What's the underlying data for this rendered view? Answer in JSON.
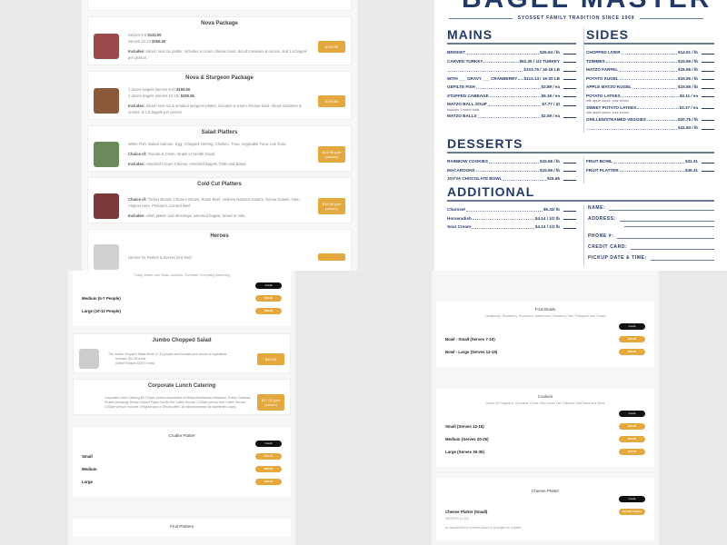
{
  "colors": {
    "accent": "#e3a93e",
    "navy": "#243a66",
    "credit": "#111111"
  },
  "catering": {
    "cards": [
      {
        "title": "Nova Package",
        "lines": [
          [
            "Serves 6-8 ",
            "$143.00"
          ],
          [
            "Serves 12-15 ",
            "$256.30"
          ]
        ],
        "includes_label": "Includes:",
        "includes": " sliced nova lox platter, includes a cream cheese bowl, sliced tomatoes & onions, and 1.5 bagels per person.",
        "button": "$143.00",
        "thumb": "#9b4a4a"
      },
      {
        "title": "Nova & Sturgeon Package",
        "lines": [
          [
            "1 dozen bagels (serves 6-8) ",
            "$159.50"
          ],
          [
            "2 dozen bagels (serves 12-15) ",
            "$290.95"
          ]
        ],
        "includes_label": "Includes:",
        "includes": " sliced nova lox & smoked sturgeon platter, includes a cream cheese bowl, sliced tomatoes & onions, & 1.5 bagels per person.",
        "button": "$159.50",
        "thumb": "#8a5a3a"
      },
      {
        "title": "Salad Platters",
        "lines": [
          [
            "White Fish, Baked Salmon, Egg, Chopped Herring, Chicken, Tuna, Vegetable Tuna, Lite Tuna",
            ""
          ]
        ],
        "choice_label": "Choice of:",
        "choice": " Tomato & Onion, Israeli or Health Salad",
        "includes_label": "Includes:",
        "includes": " Assorted Cream Cheese, Assorted Bagels, Flats and Bialys",
        "button": "$19.96 (per person)",
        "thumb": "#6a8a5a"
      },
      {
        "title": "Cold Cut Platters",
        "choice_label": "Choice of:",
        "choice": " Turkey Breast, Chicken Breast, Roast Beef, Hebrew National Salami, Genoa Salami, Ham, Virginia Ham, Pastrami, Corned Beef.",
        "includes_label": "Includes:",
        "includes": " relish platter and dressings, assorted bagels, bread or rolls.",
        "button": "$19.96 (per person)",
        "thumb": "#7a3a3a"
      },
      {
        "title": "Heroes",
        "lines": [
          [
            "Heroes for Parties & Events (3-6 feet)",
            ""
          ]
        ],
        "thumb": "#d0d0d0"
      }
    ]
  },
  "menu": {
    "brand": "BAGEL MASTER",
    "tagline": "SYOSSET FAMILY TRADITION SINCE 1969",
    "mains_title": "MAINS",
    "sides_title": "SIDES",
    "desserts_title": "DESSERTS",
    "additional_title": "ADDITIONAL",
    "mains": [
      {
        "n": "BRISKET",
        "p": "$25.94 / lb"
      },
      {
        "n": "CARVED TURKEY",
        "p": "$62.25 / 1/2 TURKEY"
      },
      {
        "n": "",
        "p": "$103.75 / 16-18 LB"
      },
      {
        "n": "WITH ___ GRAVY ___ CRANBERRY",
        "p": "$114.13 / 16-20 LB"
      },
      {
        "n": "GEFILTE FISH",
        "p": "$3.89 / ea"
      },
      {
        "n": "STUFFED CABBAGE",
        "p": "$5.19 / ea"
      },
      {
        "n": "MATZO BALL SOUP",
        "p": "$7.77 / qt",
        "sub": "includes 3 matzo balls"
      },
      {
        "n": "MATZO BALLS",
        "p": "$2.59 / ea"
      }
    ],
    "sides": [
      {
        "n": "CHOPPED LIVER",
        "p": "$14.51 / lb"
      },
      {
        "n": "TZIMMES",
        "p": "$15.55 / lb"
      },
      {
        "n": "MATZO FARFEL",
        "p": "$15.55 / lb"
      },
      {
        "n": "POTATO KUGEL",
        "p": "$15.55 / lb"
      },
      {
        "n": "APPLE MATZO KUGEL",
        "p": "$15.55 / lb"
      },
      {
        "n": "POTATO LATKES",
        "p": "$3.11 / ea",
        "sub": "with apple sauce, sour cream"
      },
      {
        "n": "SWEET POTATO LATKES",
        "p": "$3.37 / ea",
        "sub": "with apple sauce, sour cream"
      },
      {
        "n": "GRILLED/STEAMED VEGGIES",
        "p": "$20.75 / lb"
      },
      {
        "n": "",
        "p": "$41.50 / lb"
      }
    ],
    "desserts": [
      {
        "n": "RAINBOW COOKIES",
        "p": "$15.55 / lb"
      },
      {
        "n": "MACAROONS",
        "p": "$15.55 / lb"
      },
      {
        "n": "JOYVA CHOCOLATE BOWL",
        "p": "$15.55"
      }
    ],
    "desserts_right": [
      {
        "n": "FRUIT BOWL",
        "p": "$31.31"
      },
      {
        "n": "FRUIT PLATTER",
        "p": "$36.31"
      }
    ],
    "additional": [
      {
        "n": "Charoset",
        "p": "$9.32/ lb"
      },
      {
        "n": "Horseradish",
        "p": "$4.14 / 1/2 lb"
      },
      {
        "n": "Sour Cream",
        "p": "$4.14 / 1/2 lb"
      }
    ],
    "form": [
      "NAME:",
      "ADDRESS:",
      "PHONE #:",
      "CREDIT CARD:",
      "PICKUP DATE & TIME:"
    ]
  },
  "left_bottom": {
    "top_subtitle": "Turkey, Alpine Lace Swiss, Avocado, Cucumber, Everything Seasoning",
    "credit": "Credit",
    "top_options": [
      {
        "label": "Medium (5-7 People)",
        "price": "$49.99"
      },
      {
        "label": "Large (10-12 People)",
        "price": "$69.99"
      }
    ],
    "jumbo": {
      "title": "Jumbo Chopped Salad",
      "desc": "The Jumbo Chopped Salad feeds 12-15 people and includes your choice of ingredients",
      "bullets": [
        "Avocado $12.95 extra",
        "Grilled Chicken $18.57 extra"
      ],
      "button": "$45.00"
    },
    "corporate": {
      "title": "Corporate Lunch Catering",
      "desc": "Corporate Lunch Catering $17.00/per person Assortment of Wraps/Sandwiches Macaroni, Potato Coleslaw, Pickles Dressings Drinks Dessert Paper Goods Hot Coffee Service 1.00/per person Iced Coffee Service 3.00/per person Includes: (Regular and or Decaf coffee, all milks/creamers/ all sweeteners cups)",
      "button": "$17.00 (per person)"
    },
    "crudite": {
      "title": "Crudite Platter",
      "options": [
        {
          "label": "Small",
          "price": "$72.12"
        },
        {
          "label": "Medium",
          "price": "$82.95"
        },
        {
          "label": "Large",
          "price": "$93.30"
        }
      ]
    },
    "fruit_platters_title": "Fruit Platters"
  },
  "right_bottom": {
    "credit": "Credit",
    "fruit_bowls": {
      "title": "Fruit Bowls",
      "subtitle": "Cantaloupe, Strawberry, Honeydew, Watermelon, Blueberry, Kiwi, Pineapple and Grapes",
      "options": [
        {
          "label": "Bowl - Small (Serves 7-10)",
          "price": "$39.95"
        },
        {
          "label": "Bowl - Large (Serves 12-15)",
          "price": "$59.95"
        }
      ]
    },
    "cookies": {
      "title": "Cookies",
      "subtitle": "Choice of: Rugelach, Chocolate Chunk, Mini Linzer Tart, Rainbow, Mini Black and White",
      "options": [
        {
          "label": "Small (Serves 12-15)",
          "price": "$39.95"
        },
        {
          "label": "Medium (Serves 20-25)",
          "price": "$61.50"
        },
        {
          "label": "Large (Serves 30-35)",
          "price": "$73.63"
        }
      ]
    },
    "cheese": {
      "title": "Cheese Platter",
      "option": "Cheese Platter (Small)",
      "price": "$63.00 / Platter",
      "serves": "(SERVES 12-15)",
      "desc": "an assortment of cheeses sliced & arranged on a platter"
    }
  }
}
